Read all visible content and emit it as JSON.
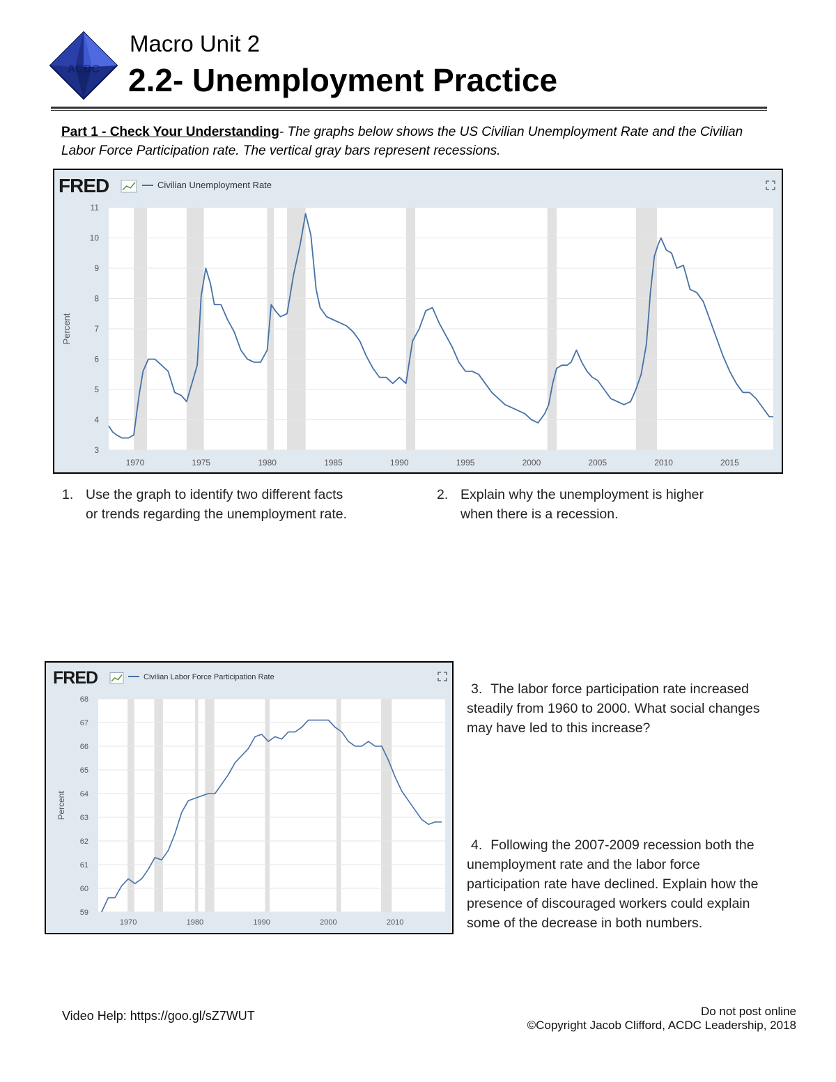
{
  "header": {
    "unit": "Macro Unit 2",
    "title": "2.2- Unemployment Practice"
  },
  "intro": {
    "part_label": "Part 1 - Check Your Understanding",
    "text": "- The graphs below shows the US Civilian Unemployment Rate and the Civilian Labor Force Participation rate. The vertical gray bars represent recessions."
  },
  "chart_common": {
    "brand": "FRED",
    "ylabel": "Percent",
    "line_color": "#4572a7",
    "recession_color": "#e1e1e1",
    "background": "#e1e9f0",
    "recessions": [
      [
        1969.9,
        1970.9
      ],
      [
        1973.9,
        1975.2
      ],
      [
        1980.0,
        1980.5
      ],
      [
        1981.5,
        1982.9
      ],
      [
        1990.5,
        1991.2
      ],
      [
        2001.2,
        2001.9
      ],
      [
        2007.9,
        2009.5
      ]
    ]
  },
  "chart_data": [
    {
      "type": "line",
      "title": "Civilian Unemployment Rate",
      "ylabel": "Percent",
      "xlim": [
        1968,
        2018.3
      ],
      "ylim": [
        3,
        11
      ],
      "xticks": [
        1970,
        1975,
        1980,
        1985,
        1990,
        1995,
        2000,
        2005,
        2010,
        2015
      ],
      "yticks": [
        3,
        4,
        5,
        6,
        7,
        8,
        9,
        10,
        11
      ],
      "series": [
        {
          "x": [
            1968.0,
            1968.3,
            1968.6,
            1969.0,
            1969.5,
            1969.9,
            1970.3,
            1970.6,
            1971.0,
            1971.5,
            1972.0,
            1972.5,
            1973.0,
            1973.5,
            1973.9,
            1974.3,
            1974.7,
            1975.0,
            1975.35,
            1975.7,
            1976.0,
            1976.5,
            1977.0,
            1977.5,
            1978.0,
            1978.5,
            1979.0,
            1979.5,
            1980.0,
            1980.3,
            1980.6,
            1981.0,
            1981.5,
            1982.0,
            1982.5,
            1982.9,
            1983.3,
            1983.7,
            1984.0,
            1984.5,
            1985.0,
            1985.5,
            1986.0,
            1986.5,
            1987.0,
            1987.5,
            1988.0,
            1988.5,
            1989.0,
            1989.5,
            1990.0,
            1990.5,
            1991.0,
            1991.5,
            1992.0,
            1992.5,
            1993.0,
            1993.5,
            1994.0,
            1994.5,
            1995.0,
            1995.5,
            1996.0,
            1996.5,
            1997.0,
            1997.5,
            1998.0,
            1998.5,
            1999.0,
            1999.5,
            2000.0,
            2000.5,
            2001.0,
            2001.3,
            2001.6,
            2001.9,
            2002.3,
            2002.7,
            2003.0,
            2003.4,
            2003.8,
            2004.2,
            2004.6,
            2005.0,
            2005.5,
            2006.0,
            2006.5,
            2007.0,
            2007.5,
            2007.9,
            2008.3,
            2008.7,
            2009.0,
            2009.3,
            2009.6,
            2009.8,
            2010.2,
            2010.6,
            2011.0,
            2011.5,
            2012.0,
            2012.5,
            2013.0,
            2013.5,
            2014.0,
            2014.5,
            2015.0,
            2015.5,
            2016.0,
            2016.5,
            2017.0,
            2017.5,
            2018.0,
            2018.3
          ],
          "values": [
            3.8,
            3.6,
            3.5,
            3.4,
            3.4,
            3.5,
            4.8,
            5.6,
            6.0,
            6.0,
            5.8,
            5.6,
            4.9,
            4.8,
            4.6,
            5.2,
            5.8,
            8.1,
            9.0,
            8.5,
            7.8,
            7.8,
            7.3,
            6.9,
            6.3,
            6.0,
            5.9,
            5.9,
            6.3,
            7.8,
            7.6,
            7.4,
            7.5,
            8.8,
            9.8,
            10.8,
            10.1,
            8.3,
            7.7,
            7.4,
            7.3,
            7.2,
            7.1,
            6.9,
            6.6,
            6.1,
            5.7,
            5.4,
            5.4,
            5.2,
            5.4,
            5.2,
            6.6,
            7.0,
            7.6,
            7.7,
            7.2,
            6.8,
            6.4,
            5.9,
            5.6,
            5.6,
            5.5,
            5.2,
            4.9,
            4.7,
            4.5,
            4.4,
            4.3,
            4.2,
            4.0,
            3.9,
            4.2,
            4.5,
            5.2,
            5.7,
            5.8,
            5.8,
            5.9,
            6.3,
            5.9,
            5.6,
            5.4,
            5.3,
            5.0,
            4.7,
            4.6,
            4.5,
            4.6,
            5.0,
            5.5,
            6.5,
            8.2,
            9.4,
            9.8,
            10.0,
            9.6,
            9.5,
            9.0,
            9.1,
            8.3,
            8.2,
            7.9,
            7.3,
            6.7,
            6.1,
            5.6,
            5.2,
            4.9,
            4.9,
            4.7,
            4.4,
            4.1,
            4.1
          ]
        }
      ]
    },
    {
      "type": "line",
      "title": "Civilian Labor Force Participation Rate",
      "ylabel": "Percent",
      "xlim": [
        1965.5,
        2017.5
      ],
      "ylim": [
        59,
        68
      ],
      "xticks": [
        1970,
        1980,
        1990,
        2000,
        2010
      ],
      "yticks": [
        59,
        60,
        61,
        62,
        63,
        64,
        65,
        66,
        67,
        68
      ],
      "series": [
        {
          "x": [
            1966,
            1967,
            1968,
            1969,
            1970,
            1971,
            1972,
            1973,
            1974,
            1975,
            1976,
            1977,
            1978,
            1979,
            1980,
            1981,
            1982,
            1983,
            1984,
            1985,
            1986,
            1987,
            1988,
            1989,
            1990,
            1991,
            1992,
            1993,
            1994,
            1995,
            1996,
            1997,
            1998,
            1999,
            2000,
            2001,
            2002,
            2003,
            2004,
            2005,
            2006,
            2007,
            2008,
            2009,
            2010,
            2011,
            2012,
            2013,
            2014,
            2015,
            2016,
            2017
          ],
          "values": [
            59.0,
            59.6,
            59.6,
            60.1,
            60.4,
            60.2,
            60.4,
            60.8,
            61.3,
            61.2,
            61.6,
            62.3,
            63.2,
            63.7,
            63.8,
            63.9,
            64.0,
            64.0,
            64.4,
            64.8,
            65.3,
            65.6,
            65.9,
            66.4,
            66.5,
            66.2,
            66.4,
            66.3,
            66.6,
            66.6,
            66.8,
            67.1,
            67.1,
            67.1,
            67.1,
            66.8,
            66.6,
            66.2,
            66.0,
            66.0,
            66.2,
            66.0,
            66.0,
            65.4,
            64.7,
            64.1,
            63.7,
            63.3,
            62.9,
            62.7,
            62.8,
            62.8
          ]
        }
      ]
    }
  ],
  "questions": {
    "q1": {
      "num": "1.",
      "line1": "Use the graph to identify two different facts",
      "line2": "or trends regarding the unemployment rate."
    },
    "q2": {
      "num": "2.",
      "line1": "Explain why the unemployment is higher",
      "line2": "when there is a recession."
    },
    "q3": {
      "num": "3.",
      "text": "The labor force participation rate increased steadily from 1960 to 2000. What social changes may have led to this increase?"
    },
    "q4": {
      "num": "4.",
      "text": "Following the 2007-2009 recession both the unemployment rate and the labor force participation rate have declined. Explain how the presence of discouraged workers could explain some of the decrease in both numbers."
    }
  },
  "footer": {
    "video_help": "Video Help: https://goo.gl/sZ7WUT",
    "notice": "Do not post online",
    "copyright": "©Copyright Jacob Clifford, ACDC Leadership, 2018"
  }
}
